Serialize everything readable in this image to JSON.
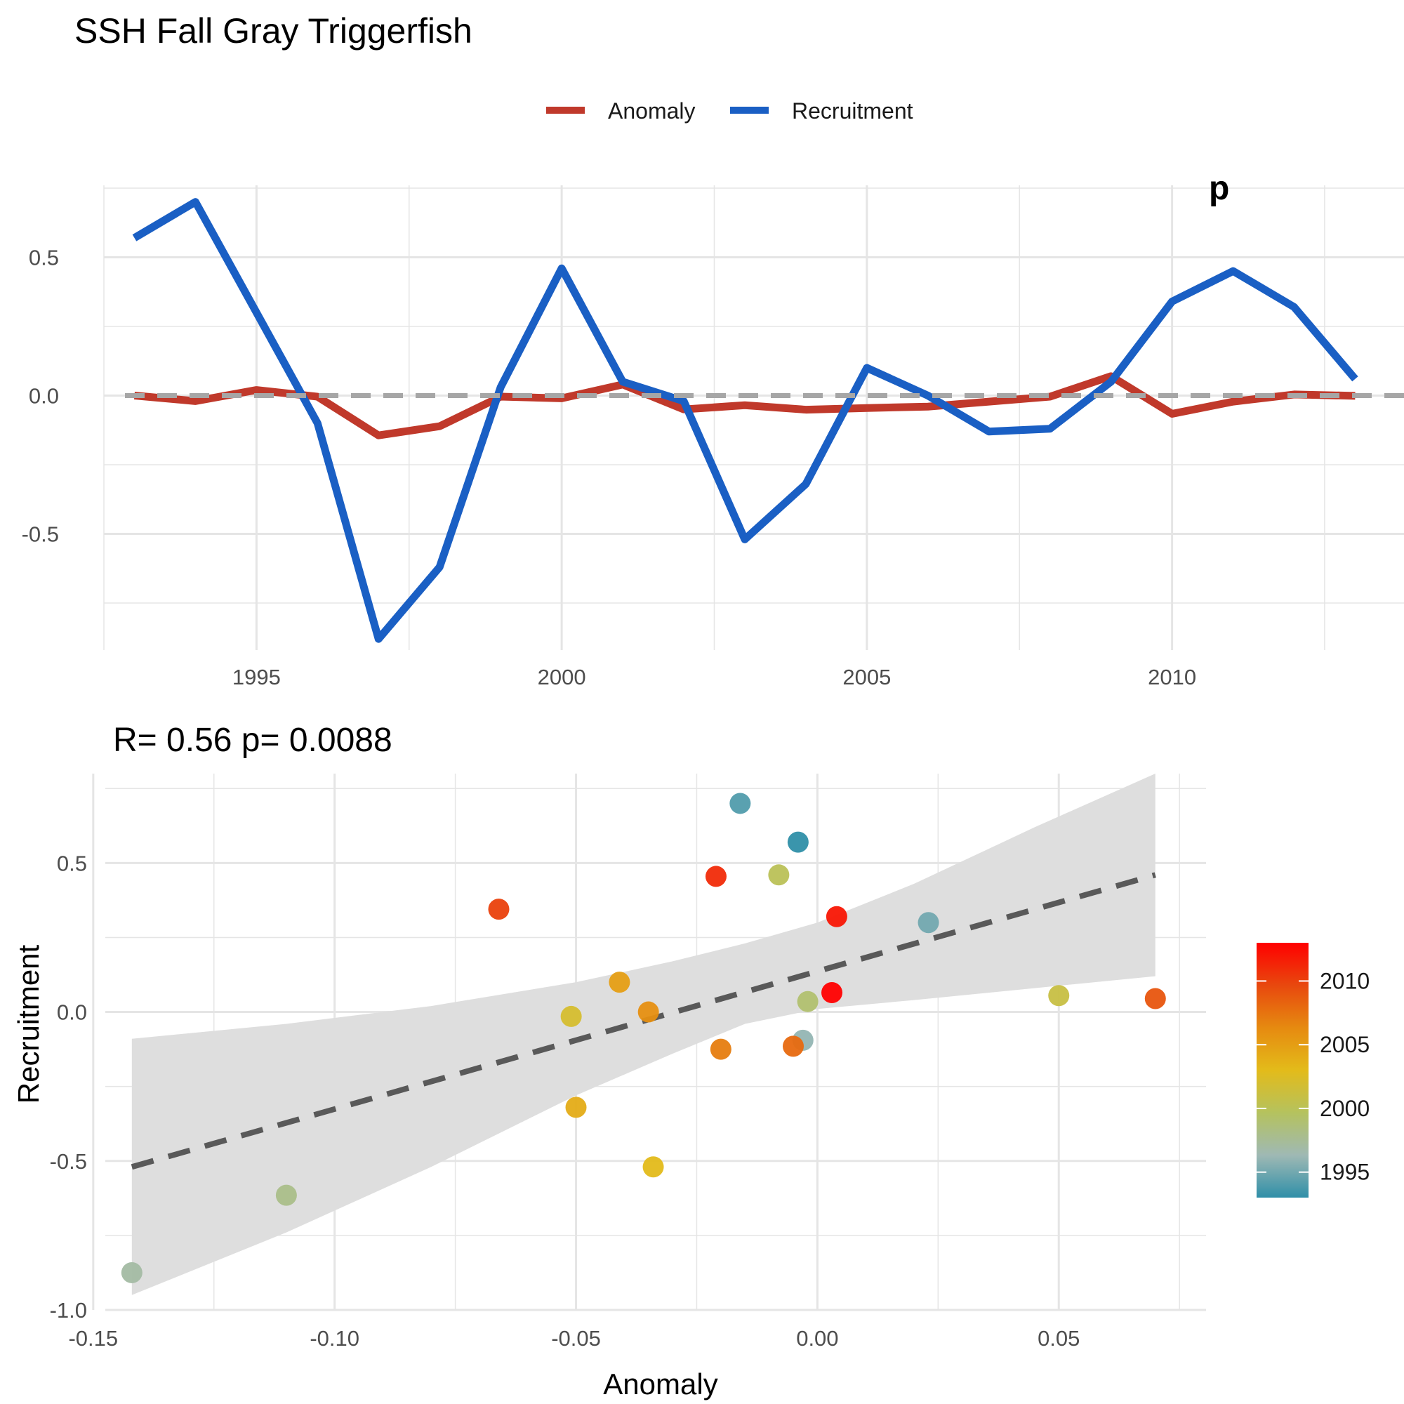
{
  "page": {
    "title": "SSH Fall Gray Triggerfish"
  },
  "colors": {
    "anomaly": "#c0392b",
    "recruitment": "#1a5fc4",
    "zero_line": "#a6a6a6",
    "grid": "#e5e5e5",
    "ribbon": "#dedede",
    "fit_line": "#595959",
    "year_scale": [
      "#2f8fa8",
      "#9fb9b4",
      "#b5c25e",
      "#e3bb1a",
      "#e68a10",
      "#e8480e",
      "#ff0000"
    ]
  },
  "chart_data": [
    {
      "type": "line",
      "title": "SSH Fall Gray Triggerfish",
      "xlabel": "",
      "ylabel": "",
      "legend": {
        "position": "top",
        "entries": [
          "Anomaly",
          "Recruitment"
        ]
      },
      "grid": true,
      "x": [
        1993,
        1994,
        1995,
        1996,
        1997,
        1998,
        1999,
        2000,
        2001,
        2002,
        2003,
        2004,
        2005,
        2006,
        2007,
        2008,
        2009,
        2010,
        2011,
        2012,
        2013
      ],
      "series": [
        {
          "name": "Anomaly",
          "values": [
            0.0,
            -0.02,
            0.02,
            -0.004,
            -0.144,
            -0.111,
            -0.004,
            -0.01,
            0.04,
            -0.05,
            -0.035,
            -0.051,
            -0.045,
            -0.04,
            -0.022,
            -0.004,
            0.07,
            -0.066,
            -0.022,
            0.004,
            -0.001
          ]
        },
        {
          "name": "Recruitment",
          "values": [
            0.57,
            0.7,
            0.3,
            -0.1,
            -0.88,
            -0.62,
            0.03,
            0.46,
            0.05,
            -0.02,
            -0.52,
            -0.32,
            0.1,
            0.0,
            -0.13,
            -0.12,
            0.05,
            0.34,
            0.45,
            0.32,
            0.06
          ]
        }
      ],
      "reference_line": 0,
      "xlim": [
        1992.5,
        2013.8
      ],
      "ylim": [
        -0.92,
        0.76
      ],
      "x_ticks": [
        "1995",
        "2000",
        "2005",
        "2010"
      ],
      "y_ticks": [
        "-0.5",
        "0.0",
        "0.5"
      ],
      "annotation": "p"
    },
    {
      "type": "scatter",
      "title": "R= 0.56  p= 0.0088",
      "xlabel": "Anomaly",
      "ylabel": "Recruitment",
      "grid": true,
      "xlim": [
        -0.1475,
        0.0805
      ],
      "ylim": [
        -1.0,
        0.8
      ],
      "x_ticks": [
        "-0.15",
        "-0.10",
        "-0.05",
        "0.00",
        "0.05"
      ],
      "y_ticks": [
        "-1.0",
        "-0.5",
        "0.0",
        "0.5"
      ],
      "points": [
        {
          "year": 1993,
          "x": -0.004,
          "y": 0.57
        },
        {
          "year": 1994,
          "x": -0.016,
          "y": 0.7
        },
        {
          "year": 1995,
          "x": 0.023,
          "y": 0.3
        },
        {
          "year": 1996,
          "x": -0.003,
          "y": -0.095
        },
        {
          "year": 1997,
          "x": -0.142,
          "y": -0.875
        },
        {
          "year": 1998,
          "x": -0.11,
          "y": -0.615
        },
        {
          "year": 1999,
          "x": -0.002,
          "y": 0.035
        },
        {
          "year": 2000,
          "x": -0.008,
          "y": 0.46
        },
        {
          "year": 2001,
          "x": 0.05,
          "y": 0.055
        },
        {
          "year": 2002,
          "x": -0.051,
          "y": -0.015
        },
        {
          "year": 2003,
          "x": -0.034,
          "y": -0.52
        },
        {
          "year": 2004,
          "x": -0.05,
          "y": -0.32
        },
        {
          "year": 2005,
          "x": -0.041,
          "y": 0.1
        },
        {
          "year": 2006,
          "x": -0.035,
          "y": 0.0
        },
        {
          "year": 2007,
          "x": -0.02,
          "y": -0.125
        },
        {
          "year": 2008,
          "x": -0.005,
          "y": -0.115
        },
        {
          "year": 2009,
          "x": 0.07,
          "y": 0.045
        },
        {
          "year": 2010,
          "x": -0.066,
          "y": 0.345
        },
        {
          "year": 2011,
          "x": -0.021,
          "y": 0.455
        },
        {
          "year": 2012,
          "x": 0.004,
          "y": 0.32
        },
        {
          "year": 2013,
          "x": 0.003,
          "y": 0.065
        }
      ],
      "fit_line": {
        "x": [
          -0.142,
          0.07
        ],
        "y": [
          -0.52,
          0.46
        ],
        "style": "dashed"
      },
      "confidence_band": {
        "x": [
          -0.142,
          -0.11,
          -0.08,
          -0.05,
          -0.03,
          -0.015,
          0.0,
          0.02,
          0.045,
          0.07
        ],
        "upper": [
          -0.09,
          -0.04,
          0.02,
          0.1,
          0.17,
          0.23,
          0.3,
          0.43,
          0.62,
          0.8
        ],
        "lower": [
          -0.95,
          -0.74,
          -0.52,
          -0.28,
          -0.14,
          -0.04,
          0.01,
          0.04,
          0.08,
          0.12
        ]
      },
      "colorbar": {
        "label_ticks": [
          1995,
          2000,
          2005,
          2010
        ],
        "range": [
          1993,
          2013
        ]
      }
    }
  ]
}
